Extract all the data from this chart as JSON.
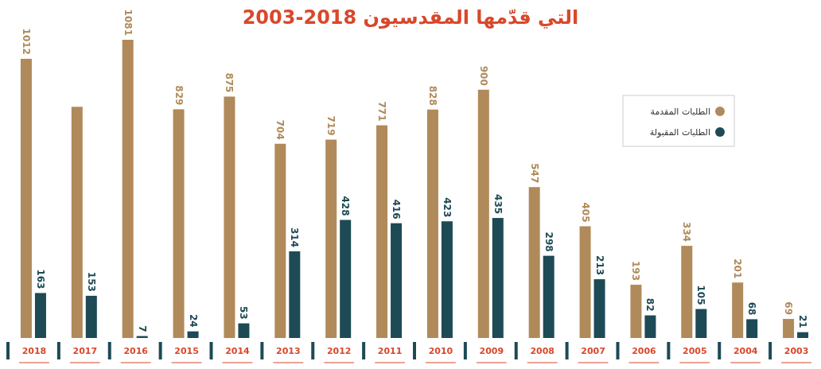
{
  "chart_data": {
    "type": "bar",
    "title": "التي قدّمها المقدسيون 2018-2003",
    "categories": [
      "2018",
      "2017",
      "2016",
      "2015",
      "2014",
      "2013",
      "2012",
      "2011",
      "2010",
      "2009",
      "2008",
      "2007",
      "2006",
      "2005",
      "2004",
      "2003"
    ],
    "series": [
      {
        "name": "الطلبات المقدمة",
        "color": "#b08a5a",
        "values": [
          1012,
          838,
          1081,
          829,
          875,
          704,
          719,
          771,
          828,
          900,
          547,
          405,
          193,
          334,
          201,
          69
        ],
        "value_labels": [
          "1012",
          null,
          "1081",
          "829",
          "875",
          "704",
          "719",
          "771",
          "828",
          "900",
          "547",
          "405",
          "193",
          "334",
          "201",
          "69"
        ]
      },
      {
        "name": "الطلبات المقبولة",
        "color": "#1d4a55",
        "values": [
          163,
          153,
          7,
          24,
          53,
          314,
          428,
          416,
          423,
          435,
          298,
          213,
          82,
          105,
          68,
          21
        ],
        "value_labels": [
          "163",
          "153",
          "7",
          "24",
          "53",
          "314",
          "428",
          "416",
          "423",
          "435",
          "298",
          "213",
          "82",
          "105",
          "68",
          "21"
        ]
      }
    ],
    "legend": "top right"
  }
}
